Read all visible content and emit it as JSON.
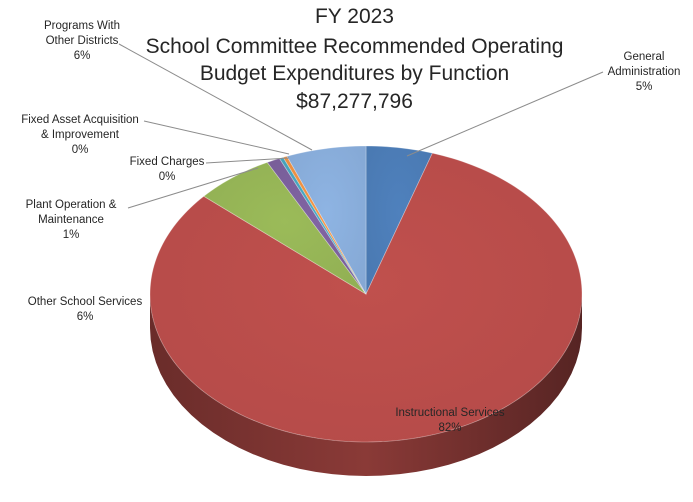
{
  "chart_data": {
    "type": "pie",
    "title_lines": [
      "FY 2023",
      "School Committee Recommended Operating",
      "Budget Expenditures by Function",
      "$87,277,796"
    ],
    "slices": [
      {
        "label_lines": [
          "General",
          "Administration"
        ],
        "pct_label": "5%",
        "value": 5.0,
        "color": "#4F81BD"
      },
      {
        "label_lines": [
          "Instructional Services"
        ],
        "pct_label": "82%",
        "value": 82.0,
        "color": "#C0504D"
      },
      {
        "label_lines": [
          "Other School Services"
        ],
        "pct_label": "6%",
        "value": 6.0,
        "color": "#9BBB59"
      },
      {
        "label_lines": [
          "Plant Operation &",
          "Maintenance"
        ],
        "pct_label": "1%",
        "value": 1.0,
        "color": "#8064A2"
      },
      {
        "label_lines": [
          "Fixed Charges"
        ],
        "pct_label": "0%",
        "value": 0.3,
        "color": "#4BACC6"
      },
      {
        "label_lines": [
          "Fixed Asset Acquisition",
          "& Improvement"
        ],
        "pct_label": "0%",
        "value": 0.3,
        "color": "#F79646"
      },
      {
        "label_lines": [
          "Programs With",
          "Other Districts"
        ],
        "pct_label": "6%",
        "value": 6.0,
        "color": "#8EB4E3"
      }
    ]
  }
}
